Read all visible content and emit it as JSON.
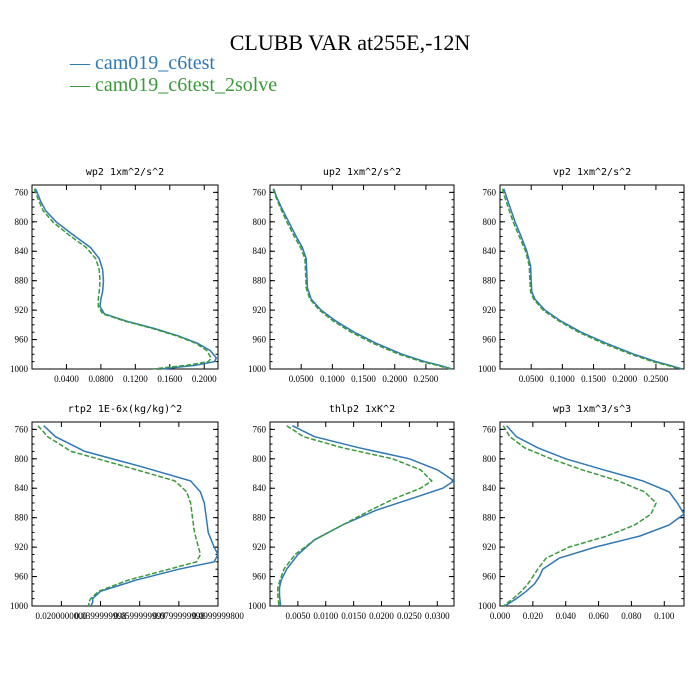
{
  "page": {
    "title": "CLUBB VAR at255E,-12N",
    "colors": {
      "cam019_c6test": "#2f78b6",
      "cam019_c6test_2solve": "#3a9a3a"
    },
    "legend": [
      {
        "marker": "—",
        "label": "cam019_c6test"
      },
      {
        "marker": "—",
        "label": "cam019_c6test_2solve"
      }
    ]
  },
  "chart_data": [
    {
      "type": "line",
      "title": "wp2  1xm^2/s^2",
      "ylim": [
        1000,
        750
      ],
      "xlim": [
        0.0,
        0.216
      ],
      "yticks": [
        "760",
        "800",
        "840",
        "880",
        "920",
        "960",
        "1000"
      ],
      "xticks": [
        "0.0400",
        "0.0800",
        "0.1200",
        "0.1600",
        "0.2000"
      ],
      "series": [
        {
          "name": "cam019_c6test",
          "y": [
            755,
            760,
            772,
            785,
            800,
            818,
            835,
            850,
            865,
            880,
            895,
            905,
            915,
            925,
            935,
            945,
            955,
            965,
            975,
            985,
            990,
            995,
            1000
          ],
          "x": [
            0.004,
            0.006,
            0.01,
            0.016,
            0.028,
            0.048,
            0.068,
            0.078,
            0.082,
            0.083,
            0.082,
            0.08,
            0.079,
            0.084,
            0.11,
            0.142,
            0.17,
            0.192,
            0.207,
            0.214,
            0.212,
            0.19,
            0.15
          ]
        },
        {
          "name": "cam019_c6test_2solve",
          "y": [
            755,
            760,
            772,
            785,
            800,
            818,
            835,
            850,
            865,
            880,
            895,
            905,
            915,
            925,
            935,
            945,
            955,
            965,
            975,
            985,
            990,
            995,
            1000
          ],
          "x": [
            0.003,
            0.004,
            0.008,
            0.013,
            0.024,
            0.043,
            0.063,
            0.074,
            0.078,
            0.079,
            0.078,
            0.077,
            0.077,
            0.082,
            0.108,
            0.14,
            0.168,
            0.19,
            0.203,
            0.208,
            0.205,
            0.18,
            0.14
          ]
        }
      ]
    },
    {
      "type": "line",
      "title": "up2  1xm^2/s^2",
      "ylim": [
        1000,
        750
      ],
      "xlim": [
        0.0,
        0.295
      ],
      "yticks": [
        "760",
        "800",
        "840",
        "880",
        "920",
        "960",
        "1000"
      ],
      "xticks": [
        "0.0500",
        "0.1000",
        "0.1500",
        "0.2000",
        "0.2500"
      ],
      "series": [
        {
          "name": "cam019_c6test",
          "y": [
            755,
            765,
            780,
            800,
            820,
            835,
            850,
            870,
            890,
            905,
            920,
            935,
            950,
            965,
            980,
            990,
            995,
            1000
          ],
          "x": [
            0.006,
            0.01,
            0.018,
            0.03,
            0.042,
            0.052,
            0.058,
            0.059,
            0.06,
            0.066,
            0.082,
            0.106,
            0.135,
            0.17,
            0.212,
            0.248,
            0.272,
            0.292
          ]
        },
        {
          "name": "cam019_c6test_2solve",
          "y": [
            755,
            765,
            780,
            800,
            820,
            835,
            850,
            870,
            890,
            905,
            920,
            935,
            950,
            965,
            980,
            990,
            995,
            1000
          ],
          "x": [
            0.005,
            0.009,
            0.016,
            0.027,
            0.039,
            0.049,
            0.056,
            0.057,
            0.058,
            0.064,
            0.079,
            0.102,
            0.13,
            0.165,
            0.207,
            0.243,
            0.268,
            0.289
          ]
        }
      ]
    },
    {
      "type": "line",
      "title": "vp2  1xm^2/s^2",
      "ylim": [
        1000,
        750
      ],
      "xlim": [
        0.0,
        0.295
      ],
      "yticks": [
        "760",
        "800",
        "840",
        "880",
        "920",
        "960",
        "1000"
      ],
      "xticks": [
        "0.0500",
        "0.1000",
        "0.1500",
        "0.2000",
        "0.2500"
      ],
      "series": [
        {
          "name": "cam019_c6test",
          "y": [
            755,
            765,
            780,
            800,
            820,
            840,
            860,
            880,
            895,
            905,
            920,
            935,
            950,
            965,
            980,
            990,
            995,
            1000
          ],
          "x": [
            0.006,
            0.01,
            0.016,
            0.024,
            0.034,
            0.043,
            0.049,
            0.05,
            0.051,
            0.056,
            0.072,
            0.098,
            0.13,
            0.17,
            0.215,
            0.25,
            0.272,
            0.292
          ]
        },
        {
          "name": "cam019_c6test_2solve",
          "y": [
            755,
            765,
            780,
            800,
            820,
            840,
            860,
            880,
            895,
            905,
            920,
            935,
            950,
            965,
            980,
            990,
            995,
            1000
          ],
          "x": [
            0.004,
            0.007,
            0.013,
            0.021,
            0.031,
            0.041,
            0.047,
            0.048,
            0.049,
            0.054,
            0.069,
            0.095,
            0.126,
            0.165,
            0.21,
            0.245,
            0.268,
            0.289
          ]
        }
      ]
    },
    {
      "type": "line",
      "title": "rtp2  1E-6x(kg/kg)^2",
      "ylim": [
        1000,
        750
      ],
      "xlim": [
        0.005,
        0.1
      ],
      "yticks": [
        "760",
        "800",
        "840",
        "880",
        "920",
        "960",
        "1000"
      ],
      "xticks": [
        "0.0200000000",
        "0.0399999998",
        "0.0599999999",
        "0.0799999998",
        "0.0999999800"
      ],
      "series": [
        {
          "name": "cam019_c6test",
          "y": [
            755,
            770,
            790,
            810,
            830,
            845,
            860,
            880,
            900,
            920,
            930,
            940,
            950,
            965,
            980,
            990,
            995,
            1000
          ],
          "x": [
            0.011,
            0.017,
            0.032,
            0.06,
            0.086,
            0.091,
            0.093,
            0.094,
            0.095,
            0.098,
            0.1,
            0.098,
            0.08,
            0.058,
            0.04,
            0.036,
            0.036,
            0.035
          ]
        },
        {
          "name": "cam019_c6test_2solve",
          "y": [
            755,
            770,
            790,
            810,
            830,
            845,
            860,
            880,
            900,
            920,
            930,
            940,
            950,
            965,
            980,
            990,
            995,
            1000
          ],
          "x": [
            0.008,
            0.013,
            0.025,
            0.052,
            0.078,
            0.084,
            0.086,
            0.087,
            0.088,
            0.09,
            0.091,
            0.089,
            0.075,
            0.054,
            0.039,
            0.035,
            0.034,
            0.034
          ]
        }
      ]
    },
    {
      "type": "line",
      "title": "thlp2  1xK^2",
      "ylim": [
        1000,
        750
      ],
      "xlim": [
        0.0,
        0.033
      ],
      "yticks": [
        "760",
        "800",
        "840",
        "880",
        "920",
        "960",
        "1000"
      ],
      "xticks": [
        "0.0050",
        "0.0100",
        "0.0150",
        "0.0200",
        "0.0250",
        "0.0300"
      ],
      "series": [
        {
          "name": "cam019_c6test",
          "y": [
            755,
            770,
            785,
            800,
            815,
            830,
            840,
            855,
            870,
            890,
            910,
            930,
            950,
            965,
            975,
            985,
            992,
            1000
          ],
          "x": [
            0.004,
            0.008,
            0.016,
            0.025,
            0.03,
            0.033,
            0.031,
            0.025,
            0.019,
            0.013,
            0.008,
            0.005,
            0.003,
            0.002,
            0.0017,
            0.0017,
            0.0018,
            0.0019
          ]
        },
        {
          "name": "cam019_c6test_2solve",
          "y": [
            755,
            770,
            785,
            800,
            815,
            830,
            840,
            855,
            870,
            890,
            910,
            930,
            950,
            965,
            975,
            985,
            992,
            1000
          ],
          "x": [
            0.003,
            0.006,
            0.013,
            0.022,
            0.027,
            0.029,
            0.027,
            0.022,
            0.018,
            0.013,
            0.008,
            0.0045,
            0.0025,
            0.0018,
            0.0014,
            0.0014,
            0.0015,
            0.0016
          ]
        }
      ]
    },
    {
      "type": "line",
      "title": "wp3  1xm^3/s^3",
      "ylim": [
        1000,
        750
      ],
      "xlim": [
        0.0,
        0.112
      ],
      "yticks": [
        "760",
        "800",
        "840",
        "880",
        "920",
        "960",
        "1000"
      ],
      "xticks": [
        "0.000",
        "0.020",
        "0.040",
        "0.060",
        "0.080",
        "0.100"
      ],
      "series": [
        {
          "name": "cam019_c6test",
          "y": [
            755,
            770,
            785,
            800,
            815,
            830,
            845,
            860,
            875,
            890,
            905,
            920,
            935,
            950,
            960,
            970,
            980,
            990,
            1000
          ],
          "x": [
            0.004,
            0.01,
            0.023,
            0.04,
            0.063,
            0.087,
            0.103,
            0.108,
            0.112,
            0.103,
            0.085,
            0.058,
            0.036,
            0.026,
            0.024,
            0.021,
            0.016,
            0.01,
            0.003
          ]
        },
        {
          "name": "cam019_c6test_2solve",
          "y": [
            755,
            770,
            785,
            800,
            815,
            830,
            845,
            860,
            875,
            890,
            905,
            920,
            935,
            950,
            960,
            970,
            980,
            990,
            1000
          ],
          "x": [
            0.002,
            0.006,
            0.015,
            0.031,
            0.05,
            0.072,
            0.088,
            0.095,
            0.092,
            0.082,
            0.065,
            0.042,
            0.028,
            0.023,
            0.02,
            0.017,
            0.013,
            0.008,
            0.002
          ]
        }
      ]
    }
  ]
}
